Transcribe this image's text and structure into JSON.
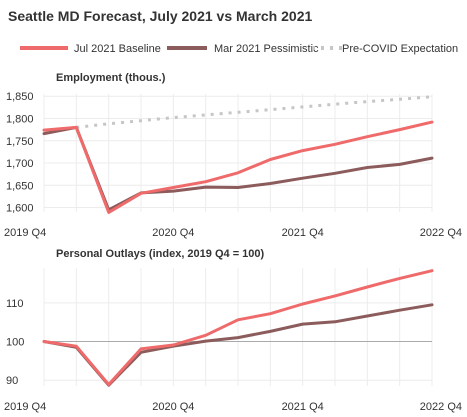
{
  "colors": {
    "jul2021": "#ef6a6a",
    "mar2021": "#8c5c5c",
    "precovid": "#c6c6c6",
    "grid": "#ececec",
    "baseline": "#aaaaaa"
  },
  "chart_data": {
    "type": "line",
    "title": "Seattle MD Forecast, July 2021 vs March 2021",
    "legend": [
      {
        "label": "Jul 2021 Baseline",
        "style": "solid",
        "color": "#ef6a6a"
      },
      {
        "label": "Mar 2021 Pessimistic",
        "style": "solid",
        "color": "#8c5c5c"
      },
      {
        "label": "Pre-COVID Expectation",
        "style": "dotted",
        "color": "#c6c6c6"
      }
    ],
    "legend_position": "top",
    "x": [
      "2019 Q4",
      "2020 Q1",
      "2020 Q2",
      "2020 Q3",
      "2020 Q4",
      "2021 Q1",
      "2021 Q2",
      "2021 Q3",
      "2021 Q4",
      "2022 Q1",
      "2022 Q2",
      "2022 Q3",
      "2022 Q4"
    ],
    "x_tick_labels": [
      "2019 Q4",
      "2020 Q4",
      "2021 Q4",
      "2022 Q4"
    ],
    "panels": [
      {
        "title": "Employment (thous.)",
        "ylim": [
          1590,
          1855
        ],
        "y_ticks": [
          1600,
          1650,
          1700,
          1750,
          1800,
          1850
        ],
        "y_tick_labels": [
          "1,600",
          "1,650",
          "1,700",
          "1,750",
          "1,800",
          "1,850"
        ],
        "grid": true,
        "series": [
          {
            "name": "Pre-COVID Expectation",
            "values": [
              null,
              1780,
              1788,
              1795,
              1802,
              1808,
              1814,
              1820,
              1826,
              1832,
              1838,
              1843,
              1849
            ]
          },
          {
            "name": "Mar 2021 Pessimistic",
            "values": [
              1766,
              1780,
              1595,
              1633,
              1637,
              1646,
              1645,
              1654,
              1666,
              1677,
              1690,
              1697,
              1711
            ]
          },
          {
            "name": "Jul 2021 Baseline",
            "values": [
              1774,
              1780,
              1589,
              1632,
              1645,
              1658,
              1678,
              1708,
              1728,
              1742,
              1759,
              1775,
              1792
            ]
          }
        ]
      },
      {
        "title": "Personal Outlays (index, 2019 Q4 = 100)",
        "ylim": [
          88.5,
          119
        ],
        "y_ticks": [
          90,
          100,
          110
        ],
        "y_tick_labels": [
          "90",
          "100",
          "110"
        ],
        "baseline": 100,
        "grid": true,
        "series": [
          {
            "name": "Mar 2021 Pessimistic",
            "values": [
              100,
              98.5,
              88.7,
              97.2,
              98.8,
              100.1,
              101.0,
              102.6,
              104.5,
              105.1,
              106.6,
              108.1,
              109.5
            ]
          },
          {
            "name": "Jul 2021 Baseline",
            "values": [
              100,
              98.8,
              88.9,
              98.1,
              99.1,
              101.6,
              105.6,
              107.2,
              109.7,
              111.8,
              114.1,
              116.3,
              118.3
            ]
          }
        ]
      }
    ]
  }
}
